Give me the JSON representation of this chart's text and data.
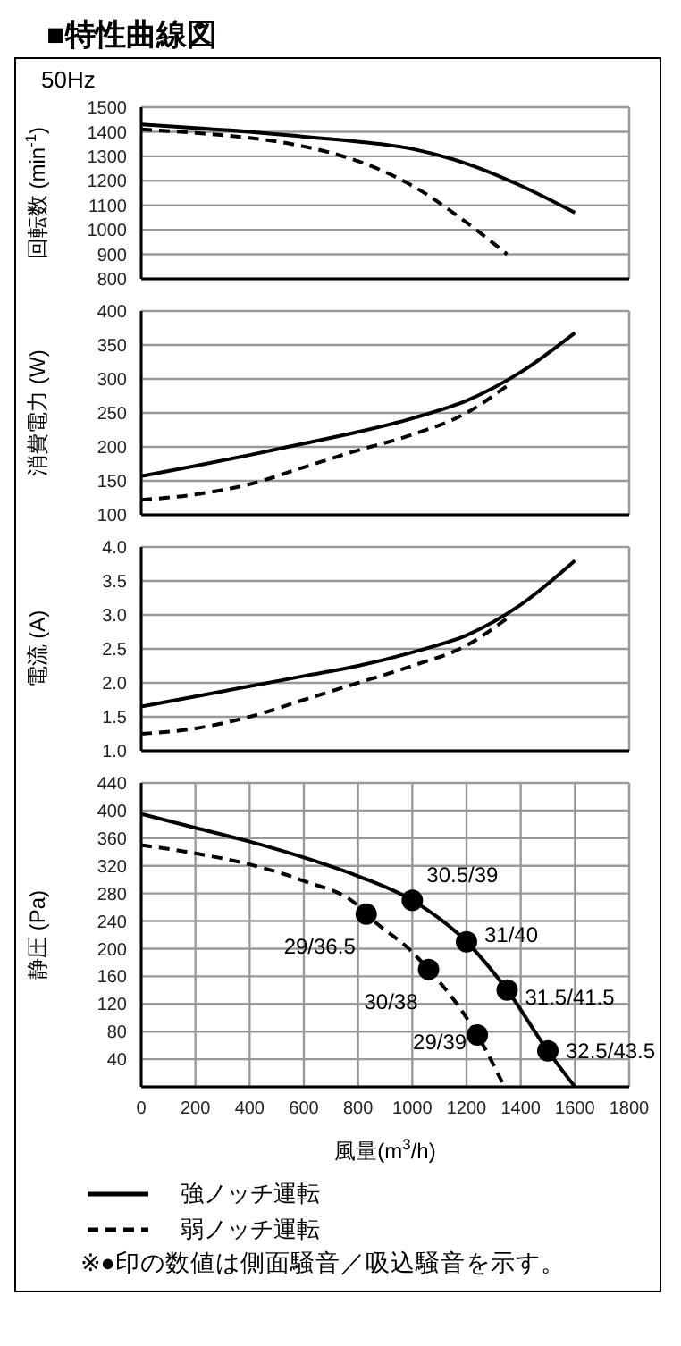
{
  "chart_data": [
    {
      "type": "line",
      "title": "■特性曲線図",
      "subtitle": "50Hz",
      "ylabel": "回転数 (min$^{-1}$)",
      "xlim": [
        0,
        1800
      ],
      "xticks": [
        0,
        200,
        400,
        600,
        800,
        1000,
        1200,
        1400,
        1600,
        1800
      ],
      "ylim": [
        800,
        1500
      ],
      "yticks": [
        800,
        900,
        1000,
        1100,
        1200,
        1300,
        1400,
        1500
      ],
      "grid": true,
      "tick_labels": "y",
      "marker": "none",
      "series": [
        {
          "color": "#000000",
          "line_style": "solid",
          "x": [
            0,
            200,
            400,
            600,
            800,
            1000,
            1200,
            1400,
            1600
          ],
          "values": [
            1430,
            1415,
            1400,
            1380,
            1360,
            1330,
            1270,
            1180,
            1070
          ]
        },
        {
          "color": "#000000",
          "line_style": "dashed",
          "x": [
            0,
            200,
            400,
            600,
            800,
            1000,
            1200,
            1350
          ],
          "values": [
            1410,
            1395,
            1375,
            1340,
            1280,
            1180,
            1030,
            900
          ]
        }
      ]
    },
    {
      "type": "line",
      "ylabel": "消費電力 (W)",
      "xlim": [
        0,
        1800
      ],
      "xticks": [
        0,
        200,
        400,
        600,
        800,
        1000,
        1200,
        1400,
        1600,
        1800
      ],
      "ylim": [
        100,
        400
      ],
      "yticks": [
        100,
        150,
        200,
        250,
        300,
        350,
        400
      ],
      "grid": true,
      "tick_labels": "y",
      "marker": "none",
      "series": [
        {
          "color": "#000000",
          "line_style": "solid",
          "x": [
            0,
            200,
            400,
            600,
            800,
            1000,
            1200,
            1400,
            1600
          ],
          "values": [
            157,
            172,
            188,
            205,
            222,
            242,
            268,
            310,
            368
          ]
        },
        {
          "color": "#000000",
          "line_style": "dashed",
          "x": [
            0,
            200,
            400,
            600,
            800,
            1000,
            1200,
            1350
          ],
          "values": [
            122,
            130,
            145,
            170,
            195,
            218,
            250,
            290
          ]
        }
      ]
    },
    {
      "type": "line",
      "ylabel": "電流 (A)",
      "xlim": [
        0,
        1800
      ],
      "xticks": [
        0,
        200,
        400,
        600,
        800,
        1000,
        1200,
        1400,
        1600,
        1800
      ],
      "ylim": [
        1.0,
        4.0
      ],
      "yticks": [
        {
          "value": 1.0,
          "label": "1.0"
        },
        {
          "value": 1.5,
          "label": "1.5"
        },
        {
          "value": 2.0,
          "label": "2.0"
        },
        {
          "value": 2.5,
          "label": "2.5"
        },
        {
          "value": 3.0,
          "label": "3.0"
        },
        {
          "value": 3.5,
          "label": "3.5"
        },
        {
          "value": 4.0,
          "label": "4.0"
        }
      ],
      "grid": true,
      "tick_labels": "y",
      "marker": "none",
      "series": [
        {
          "color": "#000000",
          "line_style": "solid",
          "x": [
            0,
            200,
            400,
            600,
            800,
            1000,
            1200,
            1400,
            1600
          ],
          "values": [
            1.65,
            1.8,
            1.95,
            2.1,
            2.25,
            2.45,
            2.7,
            3.15,
            3.8
          ]
        },
        {
          "color": "#000000",
          "line_style": "dashed",
          "x": [
            0,
            200,
            400,
            600,
            800,
            1000,
            1200,
            1350
          ],
          "values": [
            1.25,
            1.33,
            1.5,
            1.75,
            2.0,
            2.25,
            2.55,
            2.95
          ]
        }
      ]
    },
    {
      "type": "line",
      "xlabel": "風量(m$^{3}$/h)",
      "ylabel": "静圧 (Pa)",
      "xlim": [
        0,
        1800
      ],
      "xticks": [
        0,
        200,
        400,
        600,
        800,
        1000,
        1200,
        1400,
        1600,
        1800
      ],
      "ylim": [
        0,
        440
      ],
      "yticks": [
        {
          "value": 0,
          "label": null
        },
        40,
        80,
        120,
        160,
        200,
        240,
        280,
        320,
        360,
        400,
        440
      ],
      "grid": true,
      "legend": "bottom",
      "marker": "none",
      "series": [
        {
          "name": "強ノッチ運転",
          "color": "#000000",
          "line_style": "solid",
          "x": [
            0,
            200,
            400,
            600,
            800,
            1000,
            1200,
            1350,
            1500,
            1600
          ],
          "values": [
            395,
            375,
            355,
            332,
            305,
            270,
            210,
            140,
            52,
            0
          ]
        },
        {
          "name": "弱ノッチ運転",
          "color": "#000000",
          "line_style": "dashed",
          "x": [
            0,
            200,
            400,
            600,
            800,
            830,
            1000,
            1060,
            1200,
            1240,
            1340
          ],
          "values": [
            350,
            338,
            322,
            298,
            262,
            250,
            195,
            170,
            100,
            75,
            0
          ]
        },
        {
          "type": "scatter",
          "marker": "circle",
          "color": "#000000",
          "x": [
            1000,
            1200,
            1350,
            1500,
            830,
            1060,
            1240
          ],
          "values": [
            270,
            210,
            140,
            52,
            250,
            170,
            75
          ]
        }
      ],
      "annotations": [
        {
          "text": "30.5/39",
          "x": 1000,
          "y": 270
        },
        {
          "text": "31/40",
          "x": 1200,
          "y": 210
        },
        {
          "text": "31.5/41.5",
          "x": 1350,
          "y": 140
        },
        {
          "text": "32.5/43.5",
          "x": 1500,
          "y": 52
        },
        {
          "text": "29/36.5",
          "x": 830,
          "y": 250
        },
        {
          "text": "30/38",
          "x": 1060,
          "y": 170
        },
        {
          "text": "29/39",
          "x": 1240,
          "y": 75
        },
        "※●印の数値は側面騒音／吸込騒音を示す。"
      ]
    }
  ]
}
